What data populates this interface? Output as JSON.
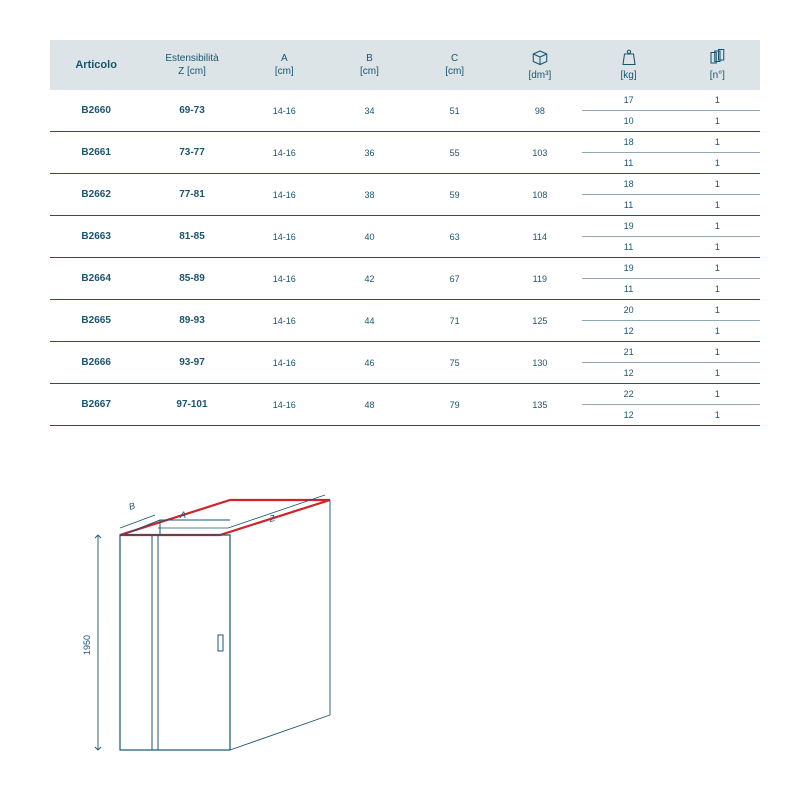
{
  "headers": {
    "articolo": "Articolo",
    "estensibilita_line1": "Estensibilità",
    "estensibilita_line2": "Z [cm]",
    "a_line1": "A",
    "a_line2": "[cm]",
    "b_line1": "B",
    "b_line2": "[cm]",
    "c_line1": "C",
    "c_line2": "[cm]",
    "volume_unit": "[dm³]",
    "weight_unit": "[kg]",
    "packs_unit": "[n°]"
  },
  "rows": [
    {
      "art": "B2660",
      "z": "69-73",
      "a": "14-16",
      "b": "34",
      "c": "51",
      "vol": "98",
      "kg1": "17",
      "p1": "1",
      "kg2": "10",
      "p2": "1"
    },
    {
      "art": "B2661",
      "z": "73-77",
      "a": "14-16",
      "b": "36",
      "c": "55",
      "vol": "103",
      "kg1": "18",
      "p1": "1",
      "kg2": "11",
      "p2": "1"
    },
    {
      "art": "B2662",
      "z": "77-81",
      "a": "14-16",
      "b": "38",
      "c": "59",
      "vol": "108",
      "kg1": "18",
      "p1": "1",
      "kg2": "11",
      "p2": "1"
    },
    {
      "art": "B2663",
      "z": "81-85",
      "a": "14-16",
      "b": "40",
      "c": "63",
      "vol": "114",
      "kg1": "19",
      "p1": "1",
      "kg2": "11",
      "p2": "1"
    },
    {
      "art": "B2664",
      "z": "85-89",
      "a": "14-16",
      "b": "42",
      "c": "67",
      "vol": "119",
      "kg1": "19",
      "p1": "1",
      "kg2": "11",
      "p2": "1"
    },
    {
      "art": "B2665",
      "z": "89-93",
      "a": "14-16",
      "b": "44",
      "c": "71",
      "vol": "125",
      "kg1": "20",
      "p1": "1",
      "kg2": "12",
      "p2": "1"
    },
    {
      "art": "B2666",
      "z": "93-97",
      "a": "14-16",
      "b": "46",
      "c": "75",
      "vol": "130",
      "kg1": "21",
      "p1": "1",
      "kg2": "12",
      "p2": "1"
    },
    {
      "art": "B2667",
      "z": "97-101",
      "a": "14-16",
      "b": "48",
      "c": "79",
      "vol": "135",
      "kg1": "22",
      "p1": "1",
      "kg2": "12",
      "p2": "1"
    }
  ],
  "diagram": {
    "height_label": "1950",
    "label_a": "A",
    "label_b": "B",
    "label_z": "Z",
    "accent": "#d2232a",
    "line": "#1a5570"
  },
  "colors": {
    "header_bg": "#dce4e7",
    "text": "#1a5570",
    "rule": "#1a5570",
    "subrule": "#8fa8b5"
  }
}
